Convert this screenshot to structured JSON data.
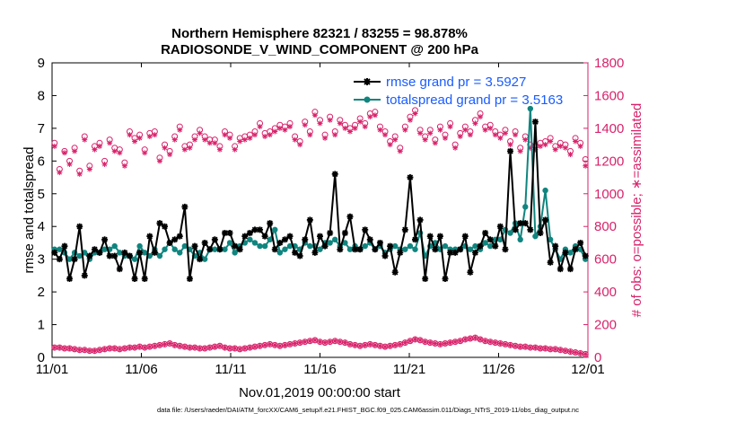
{
  "chart_data": {
    "type": "line",
    "title": "Northern Hemisphere 82321 / 83255 = 98.878%",
    "subtitle": "RADIOSONDE_V_WIND_COMPONENT @ 200 hPa",
    "xlabel": "Nov.01,2019 00:00:00 start",
    "ylabel": "rmse and totalspread",
    "ylabel_right": "# of obs: o=possible; ∗=assimilated",
    "footer": "data file: /Users/raeder/DAI/ATM_forcXX/CAM6_setup/f.e21.FHIST_BGC.f09_025.CAM6assim.011/Diags_NTrS_2019-11/obs_diag_output.nc",
    "x_ticks": [
      "11/01",
      "11/06",
      "11/11",
      "11/16",
      "11/21",
      "11/26",
      "12/01"
    ],
    "x_range_days": [
      0,
      30
    ],
    "ylim": [
      0,
      9
    ],
    "y_ticks": [
      "0",
      "1",
      "2",
      "3",
      "4",
      "5",
      "6",
      "7",
      "8",
      "9"
    ],
    "ylim_right": [
      0,
      1800
    ],
    "y_ticks_right": [
      "0",
      "200",
      "400",
      "600",
      "800",
      "1000",
      "1200",
      "1400",
      "1600",
      "1800"
    ],
    "colors": {
      "rmse": "#000000",
      "spread": "#10857f",
      "obs": "#d8226a",
      "legend_text": "#1a5cff"
    },
    "series": [
      {
        "name": "rmse",
        "legend": "rmse grand pr = 3.5927",
        "values": [
          3.2,
          3.0,
          3.4,
          2.4,
          3.0,
          4.0,
          2.5,
          3.1,
          3.3,
          3.2,
          3.6,
          3.1,
          3.1,
          2.7,
          3.2,
          3.1,
          2.4,
          3.2,
          2.4,
          3.7,
          3.2,
          4.1,
          4.0,
          3.5,
          3.6,
          3.7,
          4.6,
          2.4,
          3.4,
          3.0,
          3.5,
          3.3,
          3.6,
          3.3,
          3.8,
          3.8,
          3.4,
          3.3,
          3.7,
          3.8,
          3.9,
          3.9,
          3.7,
          4.1,
          3.3,
          3.5,
          3.6,
          3.7,
          3.2,
          3.1,
          3.6,
          4.2,
          3.2,
          3.7,
          3.4,
          3.8,
          5.6,
          3.3,
          3.8,
          4.3,
          3.3,
          3.3,
          3.9,
          3.6,
          3.3,
          3.5,
          3.1,
          3.4,
          2.6,
          3.2,
          3.9,
          5.5,
          3.6,
          4.2,
          2.4,
          3.7,
          3.3,
          3.7,
          2.4,
          3.2,
          3.2,
          3.3,
          3.7,
          2.6,
          3.2,
          3.4,
          3.8,
          3.6,
          3.4,
          4.0,
          3.3,
          6.3,
          3.9,
          4.1,
          4.1,
          3.9,
          7.2,
          3.8,
          4.2,
          2.9,
          3.4,
          2.7,
          3.2,
          2.7,
          3.3,
          3.5,
          3.1
        ],
        "grand": 3.5927
      },
      {
        "name": "totalspread",
        "legend": "totalspread grand pr = 3.5163",
        "values": [
          3.3,
          3.3,
          3.2,
          3.0,
          3.2,
          3.1,
          3.2,
          3.0,
          3.2,
          3.2,
          3.3,
          3.3,
          3.4,
          3.2,
          3.1,
          3.1,
          3.0,
          3.4,
          3.2,
          3.1,
          3.3,
          3.1,
          3.3,
          3.5,
          3.3,
          3.2,
          3.4,
          3.3,
          3.1,
          3.2,
          3.0,
          3.3,
          3.3,
          3.3,
          3.3,
          3.5,
          3.2,
          3.4,
          3.5,
          3.6,
          3.5,
          3.4,
          3.4,
          3.6,
          3.9,
          3.2,
          3.3,
          3.4,
          3.4,
          3.3,
          3.5,
          3.4,
          3.4,
          3.3,
          3.5,
          3.5,
          3.6,
          3.4,
          3.5,
          3.3,
          3.4,
          3.3,
          3.4,
          3.5,
          3.3,
          3.4,
          3.2,
          3.3,
          3.4,
          3.3,
          3.3,
          3.4,
          3.3,
          3.8,
          3.1,
          3.4,
          3.5,
          3.3,
          3.4,
          3.3,
          3.3,
          3.3,
          3.4,
          3.3,
          3.4,
          3.3,
          3.5,
          3.4,
          3.6,
          3.6,
          3.9,
          3.8,
          4.1,
          3.6,
          4.6,
          7.6,
          3.7,
          4.0,
          5.1,
          3.6,
          3.3,
          3.0,
          3.3,
          3.2,
          3.4,
          3.3,
          3.0
        ],
        "grand": 3.5163
      },
      {
        "name": "obs possible",
        "axis": "right",
        "marker": "circle",
        "values": [
          1310,
          1150,
          1260,
          1200,
          1280,
          1140,
          1350,
          1170,
          1290,
          1310,
          1200,
          1330,
          1280,
          1270,
          1190,
          1380,
          1340,
          1360,
          1270,
          1370,
          1380,
          1220,
          1300,
          1260,
          1350,
          1410,
          1290,
          1300,
          1350,
          1390,
          1350,
          1330,
          1330,
          1290,
          1380,
          1360,
          1290,
          1340,
          1350,
          1360,
          1380,
          1430,
          1370,
          1380,
          1400,
          1420,
          1410,
          1430,
          1350,
          1320,
          1440,
          1380,
          1500,
          1450,
          1360,
          1470,
          1380,
          1450,
          1420,
          1400,
          1420,
          1460,
          1430,
          1490,
          1500,
          1410,
          1380,
          1320,
          1350,
          1280,
          1410,
          1470,
          1510,
          1390,
          1350,
          1390,
          1330,
          1410,
          1360,
          1430,
          1300,
          1370,
          1410,
          1380,
          1450,
          1490,
          1410,
          1420,
          1380,
          1360,
          1390,
          1320,
          1380,
          1280,
          1350,
          1300,
          1290,
          1310,
          1320,
          1340,
          1290,
          1310,
          1300,
          1260,
          1340,
          1310,
          1210
        ],
        "count_grand": 83255
      },
      {
        "name": "obs assimilated",
        "axis": "right",
        "marker": "star",
        "values": [
          1290,
          1130,
          1250,
          1180,
          1260,
          1120,
          1330,
          1150,
          1270,
          1290,
          1180,
          1310,
          1260,
          1250,
          1170,
          1360,
          1320,
          1340,
          1250,
          1350,
          1360,
          1200,
          1280,
          1240,
          1330,
          1390,
          1270,
          1280,
          1330,
          1370,
          1330,
          1310,
          1310,
          1270,
          1360,
          1340,
          1270,
          1320,
          1330,
          1340,
          1360,
          1410,
          1350,
          1360,
          1380,
          1400,
          1390,
          1410,
          1330,
          1300,
          1420,
          1360,
          1480,
          1430,
          1340,
          1450,
          1360,
          1430,
          1400,
          1380,
          1400,
          1440,
          1410,
          1470,
          1480,
          1390,
          1360,
          1300,
          1330,
          1260,
          1390,
          1450,
          1490,
          1370,
          1330,
          1370,
          1310,
          1390,
          1340,
          1410,
          1280,
          1350,
          1390,
          1360,
          1430,
          1470,
          1390,
          1400,
          1360,
          1340,
          1370,
          1300,
          1360,
          1260,
          1330,
          1280,
          1270,
          1290,
          1300,
          1320,
          1270,
          1290,
          1280,
          1240,
          1320,
          1290,
          1170
        ],
        "count_grand": 82321
      },
      {
        "name": "obs possible (00Z)",
        "axis": "right",
        "marker": "circle",
        "values": [
          60,
          60,
          55,
          55,
          50,
          45,
          45,
          40,
          40,
          45,
          50,
          55,
          55,
          50,
          55,
          60,
          60,
          65,
          60,
          65,
          70,
          75,
          80,
          85,
          75,
          70,
          65,
          60,
          60,
          55,
          55,
          60,
          65,
          70,
          60,
          55,
          55,
          50,
          55,
          60,
          65,
          70,
          75,
          80,
          75,
          70,
          75,
          80,
          85,
          90,
          95,
          100,
          105,
          95,
          90,
          95,
          100,
          95,
          90,
          80,
          75,
          70,
          75,
          80,
          75,
          70,
          65,
          70,
          75,
          80,
          90,
          100,
          110,
          105,
          95,
          90,
          85,
          80,
          85,
          90,
          95,
          100,
          110,
          115,
          120,
          110,
          100,
          95,
          90,
          85,
          80,
          75,
          70,
          65,
          65,
          60,
          60,
          55,
          55,
          50,
          50,
          45,
          40,
          35,
          30,
          25,
          20
        ]
      },
      {
        "name": "obs assimilated (00Z)",
        "axis": "right",
        "marker": "star",
        "values": [
          60,
          60,
          55,
          55,
          50,
          45,
          45,
          40,
          40,
          45,
          50,
          55,
          55,
          50,
          55,
          60,
          60,
          65,
          60,
          65,
          70,
          75,
          80,
          85,
          75,
          70,
          65,
          60,
          60,
          55,
          55,
          60,
          65,
          70,
          60,
          55,
          55,
          50,
          55,
          60,
          65,
          70,
          75,
          80,
          75,
          70,
          75,
          80,
          85,
          90,
          95,
          100,
          105,
          95,
          90,
          95,
          100,
          95,
          90,
          80,
          75,
          70,
          75,
          80,
          75,
          70,
          65,
          70,
          75,
          80,
          90,
          100,
          110,
          105,
          95,
          90,
          85,
          80,
          85,
          90,
          95,
          100,
          110,
          115,
          120,
          110,
          100,
          95,
          90,
          85,
          80,
          75,
          70,
          65,
          65,
          60,
          60,
          55,
          55,
          50,
          50,
          45,
          40,
          35,
          30,
          25,
          20
        ]
      }
    ],
    "legend_position": "top-right"
  }
}
